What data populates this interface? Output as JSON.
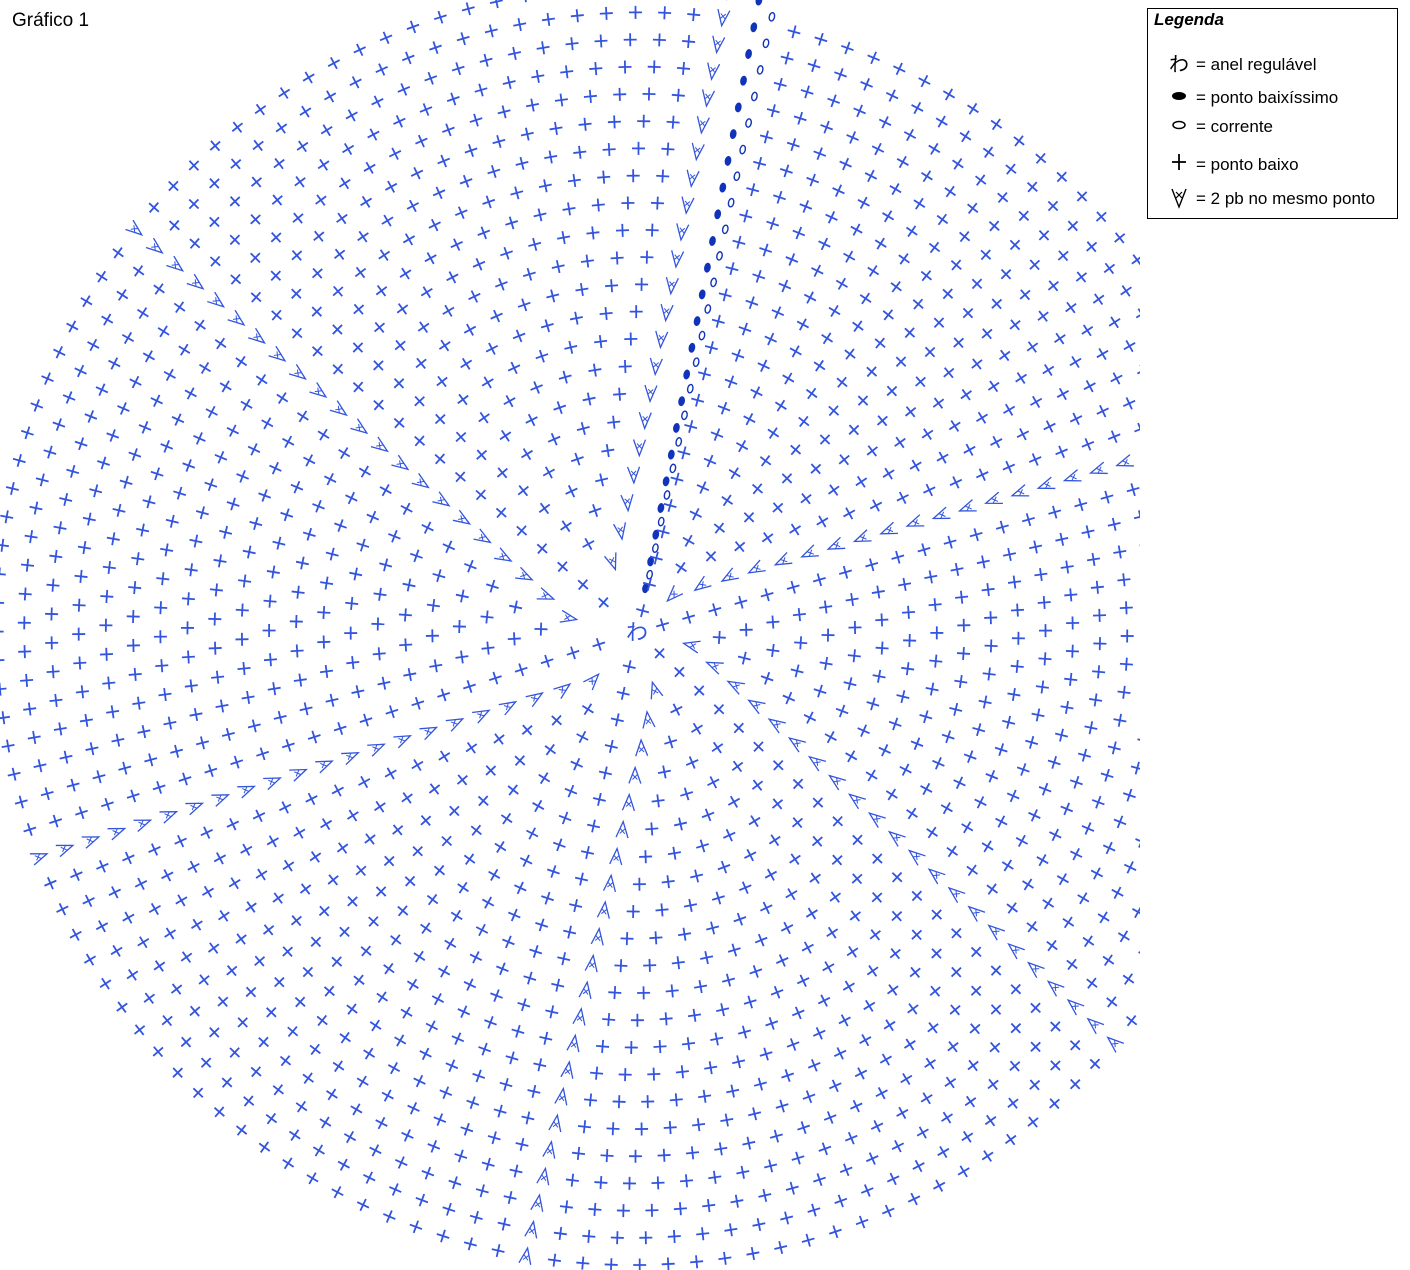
{
  "title": "Gráfico 1",
  "legend": {
    "title": "Legenda",
    "items": [
      {
        "icon": "magic-ring-icon",
        "label": "= anel regulável"
      },
      {
        "icon": "slip-stitch-icon",
        "label": "= ponto baixíssimo"
      },
      {
        "icon": "chain-stitch-icon",
        "label": "= corrente"
      },
      {
        "icon": "single-crochet-icon",
        "label": "= ponto baixo"
      },
      {
        "icon": "increase-icon",
        "label": "= 2 pb no mesmo ponto"
      }
    ]
  },
  "colors": {
    "stitch": "#3355dd",
    "slip_stitch": "#1133bb",
    "text": "#000000"
  },
  "chart_data": {
    "type": "crochet-chart",
    "pattern": "spiral amigurumi flat circle",
    "magic_ring_symbol": "わ",
    "rounds": 23,
    "increases_per_round": 6,
    "stitches_first_round": 6,
    "stitches_last_round": 138
  }
}
